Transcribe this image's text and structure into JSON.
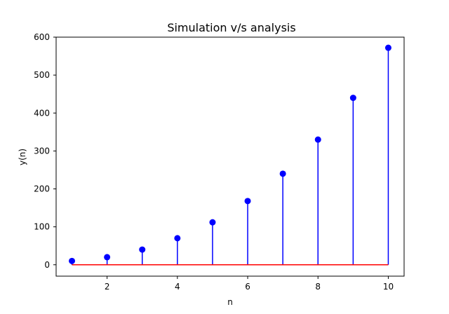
{
  "chart_data": {
    "type": "stem",
    "title": "Simulation v/s analysis",
    "xlabel": "n",
    "ylabel": "y(n)",
    "xlim": [
      0.55,
      10.45
    ],
    "ylim": [
      -30,
      600
    ],
    "xticks": [
      2,
      4,
      6,
      8,
      10
    ],
    "yticks": [
      0,
      100,
      200,
      300,
      400,
      500,
      600
    ],
    "x": [
      1,
      2,
      3,
      4,
      5,
      6,
      7,
      8,
      9,
      10
    ],
    "y": [
      10,
      20,
      40,
      70,
      112,
      168,
      240,
      330,
      440,
      572
    ],
    "grid": false,
    "colors": {
      "stems": "#0000ff",
      "markers": "#0000ff",
      "baseline": "#ff0000",
      "axes": "#000000"
    }
  }
}
